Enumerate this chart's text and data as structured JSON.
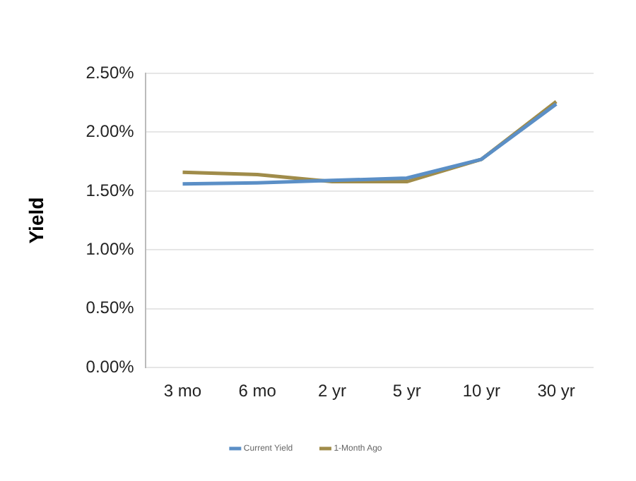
{
  "chart_data": {
    "type": "line",
    "ylabel": "Yield",
    "categories": [
      "3 mo",
      "6 mo",
      "2 yr",
      "5 yr",
      "10 yr",
      "30 yr"
    ],
    "series": [
      {
        "name": "Current Yield",
        "color": "#5b8fc6",
        "values": [
          1.56,
          1.57,
          1.59,
          1.61,
          1.77,
          2.24
        ]
      },
      {
        "name": "1-Month Ago",
        "color": "#a08c4a",
        "values": [
          1.66,
          1.64,
          1.58,
          1.58,
          1.77,
          2.26
        ]
      }
    ],
    "ylim": [
      0,
      2.5
    ],
    "yticks": [
      {
        "value": 0,
        "label": "0.00%"
      },
      {
        "value": 0.5,
        "label": "0.50%"
      },
      {
        "value": 1,
        "label": "1.00%"
      },
      {
        "value": 1.5,
        "label": "1.50%"
      },
      {
        "value": 2,
        "label": "2.00%"
      },
      {
        "value": 2.5,
        "label": "2.50%"
      }
    ],
    "grid": "y",
    "legend": "bottom",
    "marker": "none",
    "line_style": "solid"
  }
}
